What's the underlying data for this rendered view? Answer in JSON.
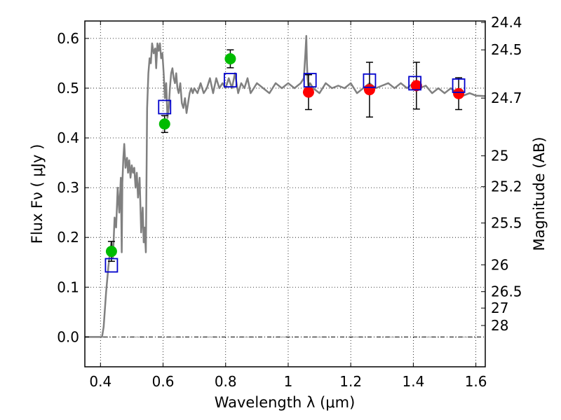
{
  "chart_data": {
    "type": "scatter",
    "xlabel": "Wavelength  λ (μm)",
    "ylabel": "Flux  Fν  ( μJy )",
    "ylabel_right": "Magnitude (AB)",
    "xlim": [
      0.35,
      1.63
    ],
    "ylim": [
      -0.06,
      0.635
    ],
    "grid": true,
    "x_ticks": [
      0.4,
      0.6,
      0.8,
      1.0,
      1.2,
      1.4,
      1.6
    ],
    "x_tick_labels": [
      "0.4",
      "0.6",
      "0.8",
      "1",
      "1.2",
      "1.4",
      "1.6"
    ],
    "y_ticks": [
      0.0,
      0.1,
      0.2,
      0.3,
      0.4,
      0.5,
      0.6
    ],
    "y_tick_labels": [
      "0.0",
      "0.1",
      "0.2",
      "0.3",
      "0.4",
      "0.5",
      "0.6"
    ],
    "right_ticks": [
      {
        "label": "24.4",
        "flux": 0.632
      },
      {
        "label": "24.5",
        "flux": 0.577
      },
      {
        "label": "24.7",
        "flux": 0.48
      },
      {
        "label": "25",
        "flux": 0.364
      },
      {
        "label": "25.2",
        "flux": 0.302
      },
      {
        "label": "25.5",
        "flux": 0.229
      },
      {
        "label": "26",
        "flux": 0.145
      },
      {
        "label": "26.5",
        "flux": 0.091
      },
      {
        "label": "27",
        "flux": 0.058
      },
      {
        "label": "28",
        "flux": 0.023
      }
    ],
    "colors": {
      "model": "#808080",
      "green": "#00bb00",
      "red": "#ff0000",
      "square": "#0000cc",
      "errorbar": "#000000"
    },
    "series": [
      {
        "style": "line",
        "color": "#808080",
        "x": [
          0.35,
          0.405,
          0.41,
          0.418,
          0.425,
          0.43,
          0.435,
          0.44,
          0.445,
          0.45,
          0.455,
          0.46,
          0.465,
          0.468,
          0.47,
          0.473,
          0.476,
          0.48,
          0.485,
          0.488,
          0.492,
          0.496,
          0.5,
          0.504,
          0.508,
          0.512,
          0.516,
          0.52,
          0.525,
          0.53,
          0.535,
          0.538,
          0.541,
          0.545,
          0.549,
          0.553,
          0.557,
          0.561,
          0.565,
          0.57,
          0.575,
          0.578,
          0.582,
          0.586,
          0.59,
          0.594,
          0.598,
          0.602,
          0.606,
          0.61,
          0.614,
          0.618,
          0.622,
          0.626,
          0.63,
          0.634,
          0.638,
          0.642,
          0.646,
          0.65,
          0.655,
          0.66,
          0.665,
          0.67,
          0.675,
          0.68,
          0.685,
          0.69,
          0.695,
          0.7,
          0.71,
          0.72,
          0.73,
          0.74,
          0.75,
          0.76,
          0.77,
          0.78,
          0.79,
          0.8,
          0.81,
          0.82,
          0.83,
          0.84,
          0.85,
          0.86,
          0.87,
          0.88,
          0.89,
          0.9,
          0.92,
          0.94,
          0.96,
          0.98,
          1.0,
          1.02,
          1.04,
          1.05,
          1.055,
          1.058,
          1.06,
          1.062,
          1.065,
          1.07,
          1.08,
          1.1,
          1.12,
          1.14,
          1.16,
          1.18,
          1.2,
          1.22,
          1.24,
          1.26,
          1.28,
          1.3,
          1.32,
          1.34,
          1.36,
          1.38,
          1.4,
          1.42,
          1.44,
          1.46,
          1.48,
          1.5,
          1.52,
          1.54,
          1.56,
          1.58,
          1.6,
          1.63
        ],
        "y": [
          0.0,
          0.0,
          0.02,
          0.09,
          0.14,
          0.17,
          0.19,
          0.16,
          0.24,
          0.22,
          0.3,
          0.25,
          0.32,
          0.17,
          0.31,
          0.36,
          0.388,
          0.34,
          0.36,
          0.33,
          0.355,
          0.32,
          0.345,
          0.33,
          0.34,
          0.3,
          0.33,
          0.28,
          0.32,
          0.21,
          0.26,
          0.19,
          0.22,
          0.17,
          0.46,
          0.53,
          0.56,
          0.55,
          0.59,
          0.57,
          0.58,
          0.54,
          0.59,
          0.575,
          0.59,
          0.56,
          0.57,
          0.53,
          0.48,
          0.51,
          0.44,
          0.46,
          0.5,
          0.53,
          0.54,
          0.52,
          0.51,
          0.53,
          0.5,
          0.49,
          0.51,
          0.47,
          0.46,
          0.48,
          0.45,
          0.47,
          0.49,
          0.5,
          0.49,
          0.5,
          0.49,
          0.51,
          0.49,
          0.5,
          0.52,
          0.49,
          0.52,
          0.5,
          0.51,
          0.5,
          0.52,
          0.5,
          0.53,
          0.49,
          0.51,
          0.5,
          0.52,
          0.49,
          0.5,
          0.51,
          0.5,
          0.49,
          0.51,
          0.5,
          0.51,
          0.5,
          0.51,
          0.52,
          0.57,
          0.605,
          0.55,
          0.52,
          0.5,
          0.51,
          0.5,
          0.49,
          0.51,
          0.5,
          0.505,
          0.5,
          0.51,
          0.49,
          0.5,
          0.51,
          0.5,
          0.505,
          0.51,
          0.5,
          0.51,
          0.5,
          0.51,
          0.5,
          0.505,
          0.49,
          0.5,
          0.49,
          0.5,
          0.49,
          0.485,
          0.49,
          0.485,
          0.484
        ]
      },
      {
        "style": "circles",
        "color": "#00bb00",
        "x": [
          0.435,
          0.605,
          0.815
        ],
        "y": [
          0.172,
          0.428,
          0.559
        ],
        "yerr": [
          0.02,
          0.017,
          0.018
        ]
      },
      {
        "style": "circles",
        "color": "#ff0000",
        "x": [
          1.065,
          1.26,
          1.41,
          1.545
        ],
        "y": [
          0.492,
          0.497,
          0.505,
          0.489
        ],
        "yerr": [
          0.035,
          0.055,
          0.047,
          0.032
        ]
      },
      {
        "style": "squares",
        "color": "#0000cc",
        "x": [
          0.435,
          0.605,
          0.815,
          1.07,
          1.26,
          1.405,
          1.545
        ],
        "y": [
          0.144,
          0.462,
          0.516,
          0.516,
          0.515,
          0.51,
          0.505
        ]
      }
    ]
  }
}
